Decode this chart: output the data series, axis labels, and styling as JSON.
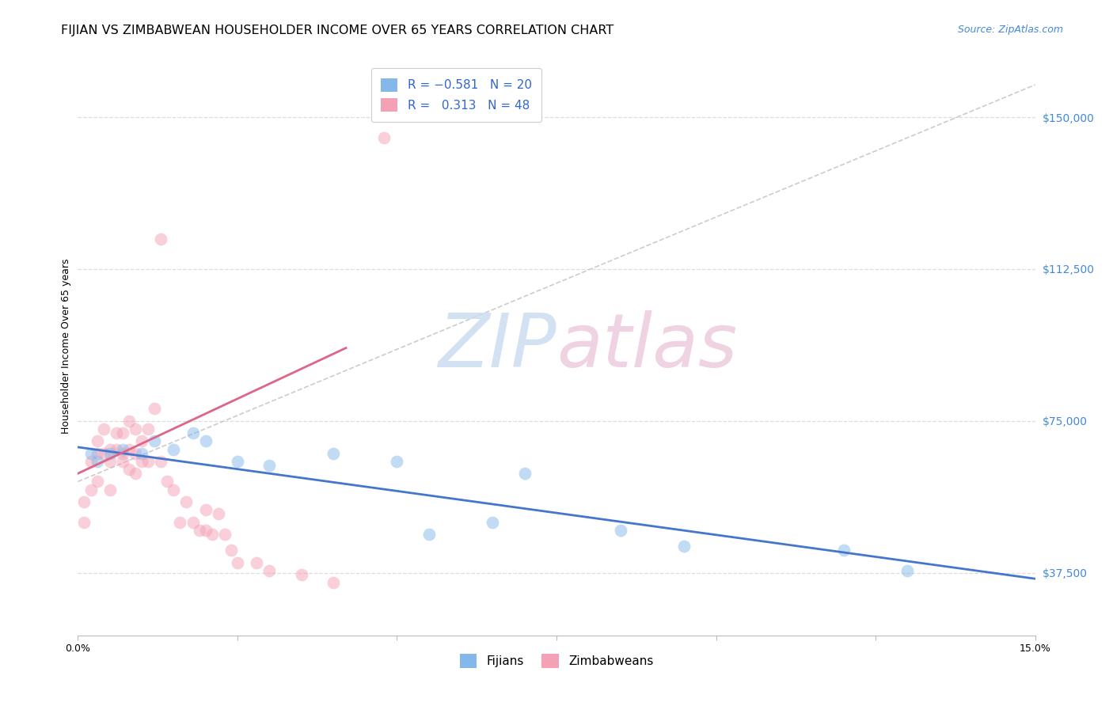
{
  "title": "FIJIAN VS ZIMBABWEAN HOUSEHOLDER INCOME OVER 65 YEARS CORRELATION CHART",
  "source": "Source: ZipAtlas.com",
  "ylabel": "Householder Income Over 65 years",
  "xlim": [
    0.0,
    0.15
  ],
  "ylim": [
    22000,
    165000
  ],
  "xticks": [
    0.0,
    0.025,
    0.05,
    0.075,
    0.1,
    0.125,
    0.15
  ],
  "xticklabels": [
    "0.0%",
    "",
    "",
    "",
    "",
    "",
    "15.0%"
  ],
  "yticks_right": [
    37500,
    75000,
    112500,
    150000
  ],
  "ytick_labels_right": [
    "$37,500",
    "$75,000",
    "$112,500",
    "$150,000"
  ],
  "fijian_color": "#85b8ea",
  "zimbabwean_color": "#f4a0b5",
  "fijian_line_color": "#4477cc",
  "zimbabwean_line_color": "#dd6688",
  "ref_line_color": "#cccccc",
  "grid_color": "#dddddd",
  "background_color": "#ffffff",
  "fijian_x": [
    0.002,
    0.003,
    0.005,
    0.007,
    0.01,
    0.012,
    0.015,
    0.018,
    0.02,
    0.025,
    0.03,
    0.04,
    0.05,
    0.055,
    0.065,
    0.07,
    0.085,
    0.095,
    0.12,
    0.13
  ],
  "fijian_y": [
    67000,
    65000,
    67000,
    68000,
    67000,
    70000,
    68000,
    72000,
    70000,
    65000,
    64000,
    67000,
    65000,
    47000,
    50000,
    62000,
    48000,
    44000,
    43000,
    38000
  ],
  "zimbabwean_x": [
    0.001,
    0.001,
    0.002,
    0.002,
    0.003,
    0.003,
    0.003,
    0.004,
    0.004,
    0.005,
    0.005,
    0.005,
    0.006,
    0.006,
    0.007,
    0.007,
    0.007,
    0.008,
    0.008,
    0.008,
    0.009,
    0.009,
    0.009,
    0.01,
    0.01,
    0.011,
    0.011,
    0.012,
    0.013,
    0.013,
    0.014,
    0.015,
    0.016,
    0.017,
    0.018,
    0.019,
    0.02,
    0.02,
    0.021,
    0.022,
    0.023,
    0.024,
    0.025,
    0.028,
    0.03,
    0.035,
    0.04,
    0.048
  ],
  "zimbabwean_y": [
    55000,
    50000,
    65000,
    58000,
    70000,
    67000,
    60000,
    73000,
    67000,
    68000,
    65000,
    58000,
    72000,
    68000,
    67000,
    72000,
    65000,
    75000,
    68000,
    63000,
    73000,
    67000,
    62000,
    70000,
    65000,
    73000,
    65000,
    78000,
    120000,
    65000,
    60000,
    58000,
    50000,
    55000,
    50000,
    48000,
    53000,
    48000,
    47000,
    52000,
    47000,
    43000,
    40000,
    40000,
    38000,
    37000,
    35000,
    145000
  ],
  "marker_size": 130,
  "marker_alpha": 0.5,
  "title_fontsize": 11.5,
  "source_fontsize": 9,
  "axis_fontsize": 9,
  "legend_fontsize": 11
}
